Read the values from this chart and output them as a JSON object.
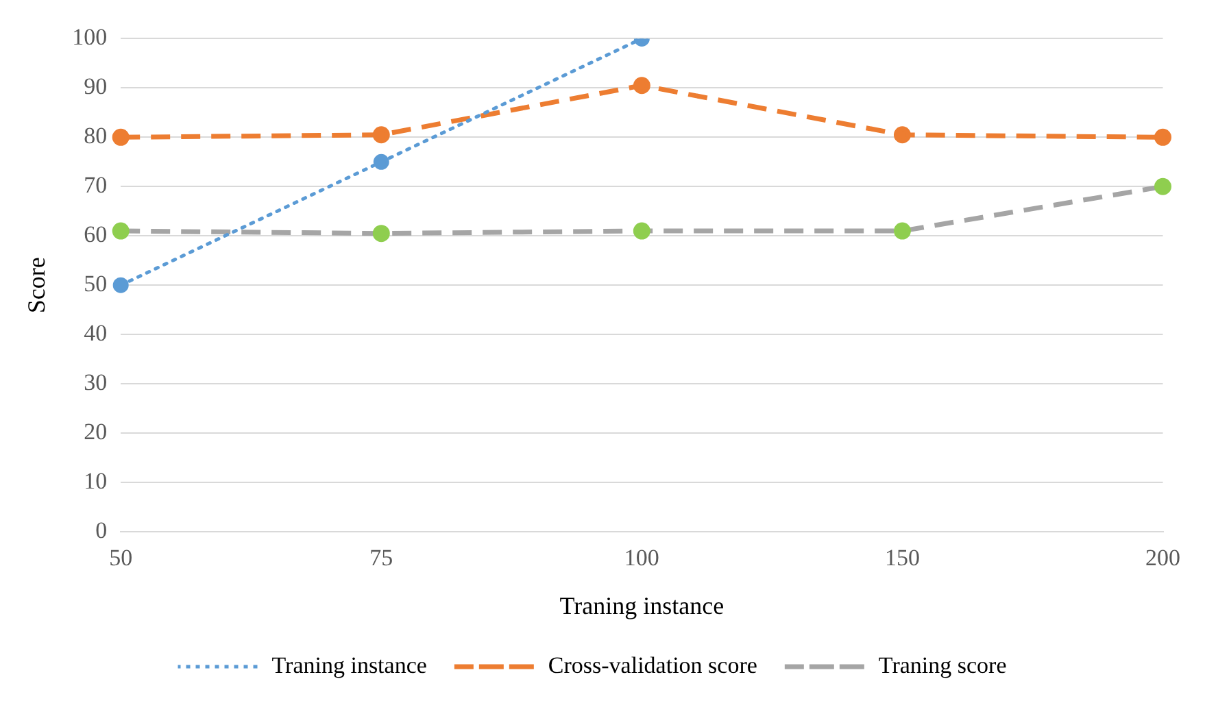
{
  "chart_data": {
    "type": "line",
    "xlabel": "Traning instance",
    "ylabel": "Score",
    "categories": [
      "50",
      "75",
      "100",
      "150",
      "200"
    ],
    "series": [
      {
        "name": "Traning instance",
        "color": "#5b9bd5",
        "line_style": "dotted",
        "values": [
          50,
          75,
          100,
          null,
          null
        ]
      },
      {
        "name": "Cross-validation score",
        "color": "#ed7d31",
        "line_style": "dashed",
        "values": [
          80,
          80.5,
          90.5,
          80.5,
          80
        ]
      },
      {
        "name": "Traning score",
        "color": "#a5a5a5",
        "colors": [
          "#8fce4f",
          "#8fce4f",
          "#8fce4f",
          "#8fce4f",
          "#8fce4f"
        ],
        "line_style": "dashed",
        "values": [
          61,
          60.5,
          61,
          61,
          70
        ]
      }
    ],
    "ylim": [
      0,
      100
    ],
    "yticks": [
      0,
      10,
      20,
      30,
      40,
      50,
      60,
      70,
      80,
      90,
      100
    ],
    "grid": "y",
    "legend": "bottom",
    "marker": "circle"
  }
}
